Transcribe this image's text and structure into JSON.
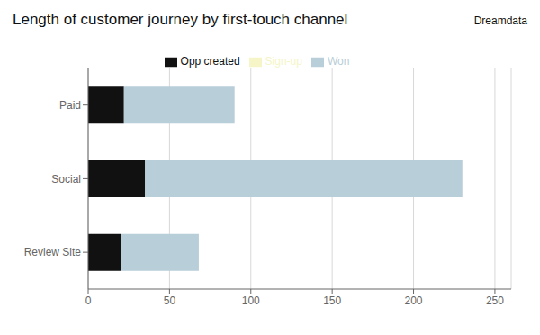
{
  "chart_data": {
    "type": "bar",
    "orientation": "horizontal",
    "stacked": true,
    "title": "Length of customer journey by first-touch channel",
    "categories": [
      "Review Site",
      "Social",
      "Paid"
    ],
    "series": [
      {
        "name": "Sign-up",
        "color": "#f5f5c8",
        "values": [
          0,
          0,
          0
        ]
      },
      {
        "name": "Opp created",
        "color": "#111111",
        "values": [
          20,
          35,
          22
        ]
      },
      {
        "name": "Won",
        "color": "#b8ced8",
        "values": [
          48,
          195,
          68
        ]
      }
    ],
    "xlim": [
      0,
      260
    ],
    "xticks": [
      0,
      50,
      100,
      150,
      200,
      250
    ],
    "grid": true,
    "legend": "top",
    "annotations": [
      "Dreamdata"
    ]
  }
}
